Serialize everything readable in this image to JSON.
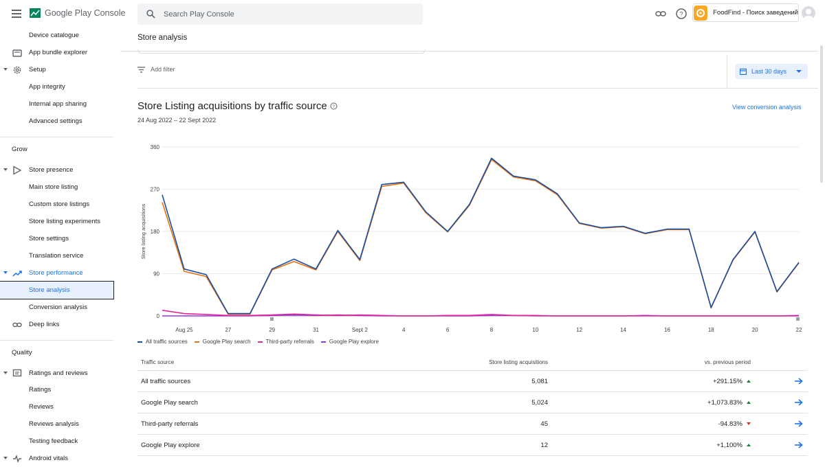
{
  "header": {
    "logo_text": "Google Play Console",
    "search_placeholder": "Search Play Console",
    "app_name": "FoodFind - Поиск заведений"
  },
  "sidebar": {
    "items": [
      {
        "label": "Device catalogue",
        "indent": true
      },
      {
        "label": "App bundle explorer",
        "icon": "app-bundle-icon"
      },
      {
        "label": "Setup",
        "icon": "gear-icon",
        "caret": true
      },
      {
        "label": "App integrity"
      },
      {
        "label": "Internal app sharing"
      },
      {
        "label": "Advanced settings"
      }
    ],
    "grow_title": "Grow",
    "grow_items": [
      {
        "label": "Store presence"
      },
      {
        "label": "Main store listing"
      },
      {
        "label": "Custom store listings"
      },
      {
        "label": "Store listing experiments"
      },
      {
        "label": "Store settings"
      },
      {
        "label": "Translation service"
      },
      {
        "label": "Store performance"
      },
      {
        "label": "Store analysis"
      },
      {
        "label": "Conversion analysis"
      },
      {
        "label": "Deep links"
      }
    ],
    "quality_title": "Quality",
    "quality_items": [
      {
        "label": "Ratings and reviews"
      },
      {
        "label": "Ratings"
      },
      {
        "label": "Reviews"
      },
      {
        "label": "Reviews analysis"
      },
      {
        "label": "Testing feedback"
      },
      {
        "label": "Android vitals"
      }
    ]
  },
  "page": {
    "title": "Store analysis",
    "add_filter": "Add filter",
    "date_range_button": "Last 30 days",
    "chart_title": "Store Listing acquisitions by traffic source",
    "chart_subtitle": "24 Aug 2022 – 22 Sept 2022",
    "view_link": "View conversion analysis"
  },
  "chart_data": {
    "type": "line",
    "title": "Store Listing acquisitions by traffic source",
    "ylabel": "Store listing acquisitions",
    "ylim": [
      0,
      360
    ],
    "yticks": [
      0,
      90,
      180,
      270,
      360
    ],
    "x_tick_labels": [
      "Aug 25",
      "27",
      "29",
      "31",
      "Sept 2",
      "4",
      "6",
      "8",
      "10",
      "12",
      "14",
      "16",
      "18",
      "20",
      "22"
    ],
    "x_tick_index": [
      1,
      3,
      5,
      7,
      9,
      11,
      13,
      15,
      17,
      19,
      21,
      23,
      25,
      27,
      29
    ],
    "x": [
      "Aug 24",
      "Aug 25",
      "Aug 26",
      "Aug 27",
      "Aug 28",
      "Aug 29",
      "Aug 30",
      "Aug 31",
      "Sept 1",
      "Sept 2",
      "Sept 3",
      "Sept 4",
      "Sept 5",
      "Sept 6",
      "Sept 7",
      "Sept 8",
      "Sept 9",
      "Sept 10",
      "Sept 11",
      "Sept 12",
      "Sept 13",
      "Sept 14",
      "Sept 15",
      "Sept 16",
      "Sept 17",
      "Sept 18",
      "Sept 19",
      "Sept 20",
      "Sept 21",
      "Sept 22"
    ],
    "series": [
      {
        "name": "All traffic sources",
        "color": "#174ea6",
        "values": [
          258,
          100,
          88,
          5,
          5,
          100,
          121,
          100,
          182,
          120,
          280,
          285,
          222,
          180,
          238,
          336,
          298,
          290,
          260,
          198,
          188,
          191,
          176,
          185,
          185,
          18,
          120,
          180,
          52,
          114
        ]
      },
      {
        "name": "Google Play search",
        "color": "#e8710a",
        "values": [
          242,
          95,
          84,
          4,
          4,
          98,
          116,
          98,
          180,
          118,
          276,
          283,
          220,
          179,
          236,
          333,
          296,
          288,
          258,
          197,
          187,
          190,
          175,
          184,
          184,
          17,
          119,
          179,
          51,
          113
        ]
      },
      {
        "name": "Third-party referrals",
        "color": "#e52592",
        "values": [
          12,
          5,
          3,
          1,
          1,
          2,
          4,
          2,
          1,
          2,
          1,
          0,
          0,
          1,
          1,
          3,
          1,
          1,
          0,
          0,
          0,
          0,
          0,
          0,
          0,
          0,
          0,
          0,
          0,
          0
        ]
      },
      {
        "name": "Google Play explore",
        "color": "#9334e6",
        "values": [
          0,
          0,
          0,
          0,
          0,
          1,
          2,
          1,
          2,
          1,
          0,
          0,
          0,
          0,
          0,
          1,
          1,
          0,
          0,
          0,
          0,
          0,
          1,
          0,
          0,
          0,
          0,
          0,
          0,
          1
        ]
      }
    ]
  },
  "table": {
    "headers": [
      "Traffic source",
      "Store listing acquisitions",
      "vs. previous period"
    ],
    "rows": [
      {
        "source": "All traffic sources",
        "acquisitions": "5,081",
        "change": "+291.15%",
        "trend": "up"
      },
      {
        "source": "Google Play search",
        "acquisitions": "5,024",
        "change": "+1,073.83%",
        "trend": "up"
      },
      {
        "source": "Third-party referrals",
        "acquisitions": "45",
        "change": "-94.83%",
        "trend": "down"
      },
      {
        "source": "Google Play explore",
        "acquisitions": "12",
        "change": "+1,100%",
        "trend": "up"
      }
    ]
  }
}
